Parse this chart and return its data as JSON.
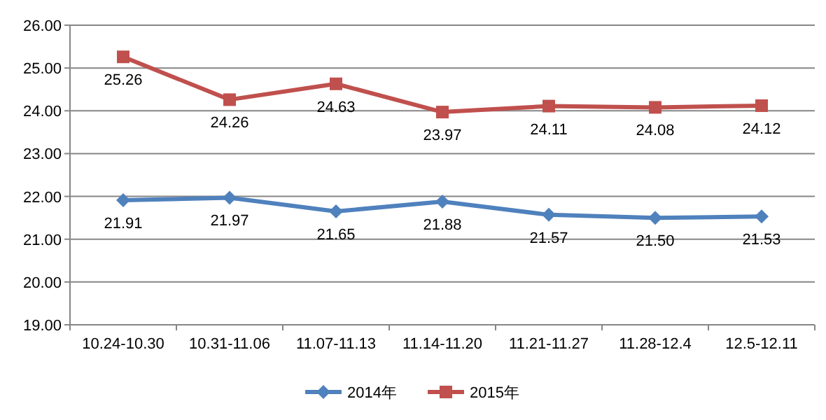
{
  "chart_data": {
    "type": "line",
    "categories": [
      "10.24-10.30",
      "10.31-11.06",
      "11.07-11.13",
      "11.14-11.20",
      "11.21-11.27",
      "11.28-12.4",
      "12.5-12.11"
    ],
    "series": [
      {
        "name": "2014年",
        "color": "#4f81bd",
        "marker": "diamond",
        "values": [
          21.91,
          21.97,
          21.65,
          21.88,
          21.57,
          21.5,
          21.53
        ],
        "value_labels": [
          "21.91",
          "21.97",
          "21.65",
          "21.88",
          "21.57",
          "21.50",
          "21.53"
        ]
      },
      {
        "name": "2015年",
        "color": "#c0504d",
        "marker": "square",
        "values": [
          25.26,
          24.26,
          24.63,
          23.97,
          24.11,
          24.08,
          24.12
        ],
        "value_labels": [
          "25.26",
          "24.26",
          "24.63",
          "23.97",
          "24.11",
          "24.08",
          "24.12"
        ]
      }
    ],
    "ylim": [
      19,
      26
    ],
    "yticks": [
      {
        "value": 19,
        "label": "19.00"
      },
      {
        "value": 20,
        "label": "20.00"
      },
      {
        "value": 21,
        "label": "21.00"
      },
      {
        "value": 22,
        "label": "22.00"
      },
      {
        "value": 23,
        "label": "23.00"
      },
      {
        "value": 24,
        "label": "24.00"
      },
      {
        "value": 25,
        "label": "25.00"
      },
      {
        "value": 26,
        "label": "26.00"
      }
    ],
    "grid": "y",
    "legend": "bottom"
  }
}
